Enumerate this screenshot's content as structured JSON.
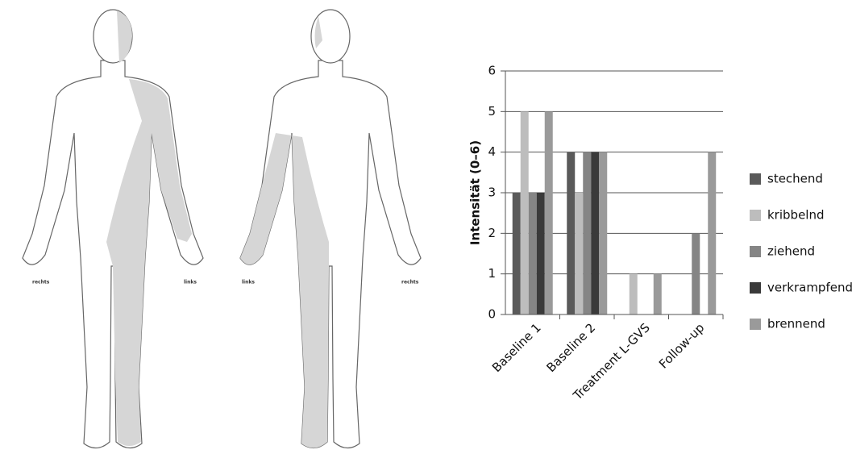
{
  "diagram": {
    "front_labels": [
      "rechts",
      "links"
    ],
    "back_labels": [
      "links",
      "rechts"
    ]
  },
  "chart_data": {
    "type": "bar",
    "ylabel": "Intensität (0–6)",
    "categories": [
      "Baseline 1",
      "Baseline 2",
      "Treatment L-GVS",
      "Follow-up"
    ],
    "series": [
      {
        "name": "stechend",
        "color": "#5a5a5a",
        "values": [
          3,
          4,
          0,
          0
        ]
      },
      {
        "name": "kribbelnd",
        "color": "#bdbdbd",
        "values": [
          5,
          3,
          1,
          0
        ]
      },
      {
        "name": "ziehend",
        "color": "#858585",
        "values": [
          3,
          4,
          0,
          2
        ]
      },
      {
        "name": "verkrampfend",
        "color": "#3a3a3a",
        "values": [
          3,
          4,
          0,
          0
        ]
      },
      {
        "name": "brennend",
        "color": "#9a9a9a",
        "values": [
          5,
          4,
          1,
          4
        ]
      }
    ],
    "ylim": [
      0,
      6
    ],
    "yticks": [
      0,
      1,
      2,
      3,
      4,
      5,
      6
    ],
    "grid": true,
    "legend": "right"
  }
}
